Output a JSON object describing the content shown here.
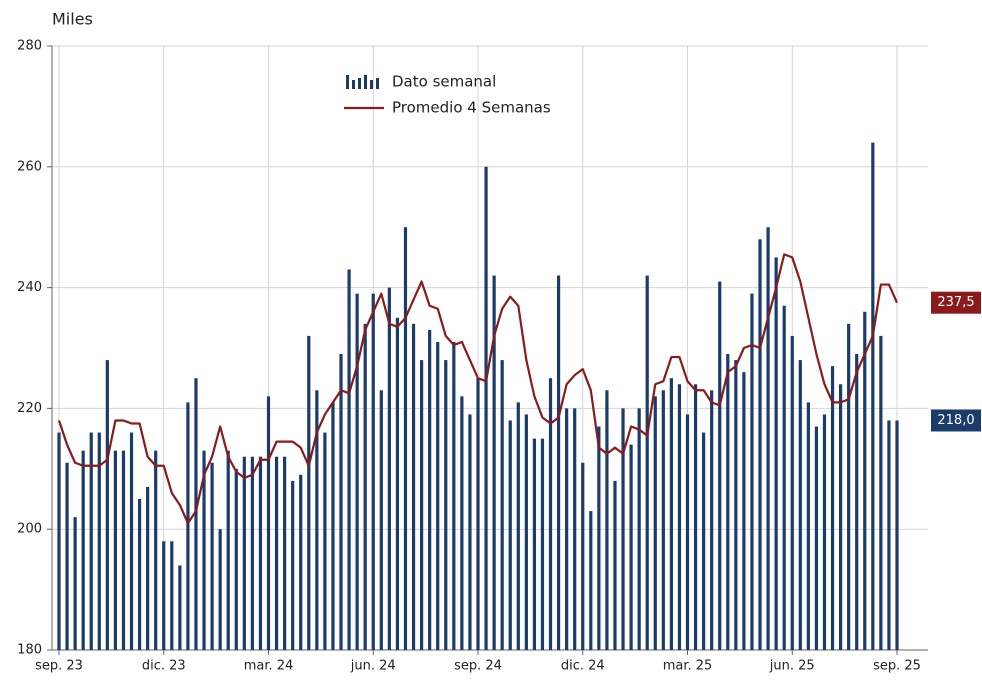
{
  "chart_data": {
    "type": "bar-line",
    "title": "Miles",
    "categories": [
      "sep. 23",
      null,
      null,
      null,
      null,
      null,
      null,
      null,
      null,
      null,
      null,
      null,
      null,
      "dic. 23",
      null,
      null,
      null,
      null,
      null,
      null,
      null,
      null,
      null,
      null,
      null,
      null,
      "mar. 24",
      null,
      null,
      null,
      null,
      null,
      null,
      null,
      null,
      null,
      null,
      null,
      null,
      "jun. 24",
      null,
      null,
      null,
      null,
      null,
      null,
      null,
      null,
      null,
      null,
      null,
      null,
      "sep. 24",
      null,
      null,
      null,
      null,
      null,
      null,
      null,
      null,
      null,
      null,
      null,
      null,
      "dic. 24",
      null,
      null,
      null,
      null,
      null,
      null,
      null,
      null,
      null,
      null,
      null,
      null,
      "mar. 25",
      null,
      null,
      null,
      null,
      null,
      null,
      null,
      null,
      null,
      null,
      null,
      null,
      "jun. 25",
      null,
      null,
      null,
      null,
      null,
      null,
      null,
      null,
      null,
      null,
      null,
      null,
      "sep. 25"
    ],
    "series": [
      {
        "name": "Dato semanal",
        "kind": "bar",
        "color": "#1b3b6a",
        "end_label": "218,0",
        "values": [
          216,
          211,
          202,
          213,
          216,
          216,
          228,
          213,
          213,
          216,
          205,
          207,
          213,
          198,
          198,
          194,
          221,
          225,
          213,
          211,
          200,
          213,
          210,
          212,
          212,
          212,
          222,
          212,
          212,
          208,
          209,
          232,
          223,
          216,
          221,
          229,
          243,
          239,
          234,
          239,
          223,
          240,
          235,
          250,
          234,
          228,
          233,
          231,
          228,
          231,
          222,
          219,
          225,
          260,
          242,
          228,
          218,
          221,
          219,
          215,
          215,
          225,
          242,
          220,
          220,
          211,
          203,
          217,
          223,
          208,
          220,
          214,
          220,
          242,
          222,
          223,
          225,
          224,
          219,
          224,
          216,
          223,
          241,
          229,
          228,
          226,
          239,
          248,
          250,
          245,
          237,
          232,
          228,
          221,
          217,
          219,
          227,
          224,
          234,
          229,
          236,
          264,
          232,
          218,
          218
        ]
      },
      {
        "name": "Promedio 4 Semanas",
        "kind": "line",
        "color": "#8b1a1a",
        "end_label": "237,5",
        "values": [
          218,
          214,
          211,
          210.5,
          210.5,
          210.5,
          211.5,
          218,
          218,
          217.5,
          217.5,
          212,
          210.5,
          210.5,
          206,
          204,
          201,
          203,
          209,
          212,
          217,
          212,
          209.5,
          208.5,
          209,
          211.5,
          211.5,
          214.5,
          214.5,
          214.5,
          213.5,
          210.5,
          216,
          219,
          221,
          223,
          222.5,
          227,
          233,
          236,
          239,
          234,
          233.5,
          235,
          238,
          241,
          237,
          236.5,
          232,
          230.5,
          231,
          228,
          225,
          224.5,
          232,
          236.5,
          238.5,
          237,
          228,
          222,
          218.5,
          217.5,
          218.5,
          224,
          225.5,
          226.5,
          223,
          213.5,
          212.5,
          213.5,
          212.5,
          217,
          216.5,
          215.5,
          224,
          224.5,
          228.5,
          228.5,
          224.5,
          223,
          223,
          221,
          220.5,
          226,
          227,
          230,
          230.5,
          230,
          235,
          240,
          245.5,
          245,
          241,
          235,
          229,
          224,
          221,
          221,
          221.5,
          226,
          229,
          232,
          240.5,
          240.5,
          237.5
        ]
      }
    ],
    "ylim": [
      180,
      280
    ],
    "yticks": [
      180,
      200,
      220,
      240,
      260,
      280
    ],
    "grid": true
  }
}
